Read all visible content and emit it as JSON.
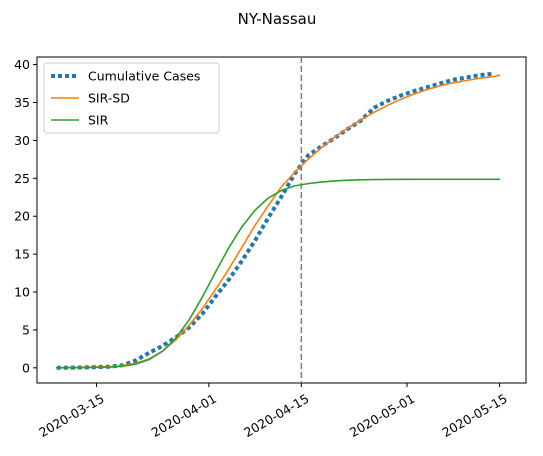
{
  "chart_data": {
    "type": "line",
    "title": "NY-Nassau",
    "xlabel": "",
    "ylabel": "",
    "x_start": "2020-03-09",
    "x_range": [
      "2020-03-06",
      "2020-05-19"
    ],
    "ylim": [
      -2,
      41
    ],
    "x_ticks": [
      "2020-03-15",
      "2020-04-01",
      "2020-04-15",
      "2020-05-01",
      "2020-05-15"
    ],
    "y_ticks": [
      0,
      5,
      10,
      15,
      20,
      25,
      30,
      35,
      40
    ],
    "vline": "2020-04-15",
    "legend": {
      "position": "upper left",
      "entries": [
        "Cumulative Cases",
        "SIR-SD",
        "SIR"
      ]
    },
    "grid": false,
    "series": [
      {
        "name": "Cumulative Cases",
        "color": "#1f77b4",
        "style": "dotted",
        "x": [
          "2020-03-09",
          "2020-03-13",
          "2020-03-17",
          "2020-03-19",
          "2020-03-21",
          "2020-03-23",
          "2020-03-25",
          "2020-03-27",
          "2020-03-29",
          "2020-03-31",
          "2020-04-02",
          "2020-04-04",
          "2020-04-06",
          "2020-04-08",
          "2020-04-10",
          "2020-04-12",
          "2020-04-14",
          "2020-04-16",
          "2020-04-18",
          "2020-04-20",
          "2020-04-22",
          "2020-04-24",
          "2020-04-26",
          "2020-04-28",
          "2020-04-30",
          "2020-05-02",
          "2020-05-04",
          "2020-05-06",
          "2020-05-08",
          "2020-05-10",
          "2020-05-12",
          "2020-05-14"
        ],
        "y": [
          0.0,
          0.05,
          0.15,
          0.35,
          1.0,
          2.0,
          2.9,
          4.0,
          5.3,
          7.1,
          9.4,
          11.6,
          14.1,
          16.8,
          19.8,
          22.6,
          25.6,
          28.0,
          29.2,
          30.3,
          31.5,
          32.6,
          34.3,
          35.2,
          35.9,
          36.5,
          37.0,
          37.5,
          38.0,
          38.3,
          38.6,
          38.8
        ]
      },
      {
        "name": "SIR-SD",
        "color": "#ff7f0e",
        "style": "solid",
        "x": [
          "2020-03-09",
          "2020-03-13",
          "2020-03-17",
          "2020-03-19",
          "2020-03-21",
          "2020-03-23",
          "2020-03-25",
          "2020-03-27",
          "2020-03-29",
          "2020-03-31",
          "2020-04-02",
          "2020-04-04",
          "2020-04-06",
          "2020-04-08",
          "2020-04-10",
          "2020-04-12",
          "2020-04-14",
          "2020-04-16",
          "2020-04-18",
          "2020-04-20",
          "2020-04-22",
          "2020-04-24",
          "2020-04-26",
          "2020-04-28",
          "2020-04-30",
          "2020-05-02",
          "2020-05-04",
          "2020-05-06",
          "2020-05-08",
          "2020-05-10",
          "2020-05-12",
          "2020-05-14",
          "2020-05-15"
        ],
        "y": [
          0.0,
          0.05,
          0.15,
          0.3,
          0.6,
          1.2,
          2.2,
          3.7,
          5.6,
          7.8,
          10.3,
          13.0,
          15.9,
          18.8,
          21.4,
          23.9,
          25.8,
          27.5,
          29.0,
          30.4,
          31.6,
          32.7,
          33.7,
          34.6,
          35.4,
          36.1,
          36.7,
          37.2,
          37.6,
          37.9,
          38.2,
          38.4,
          38.6
        ]
      },
      {
        "name": "SIR",
        "color": "#2ca02c",
        "style": "solid",
        "x": [
          "2020-03-09",
          "2020-03-13",
          "2020-03-17",
          "2020-03-19",
          "2020-03-21",
          "2020-03-23",
          "2020-03-25",
          "2020-03-27",
          "2020-03-29",
          "2020-03-31",
          "2020-04-02",
          "2020-04-04",
          "2020-04-06",
          "2020-04-08",
          "2020-04-10",
          "2020-04-12",
          "2020-04-14",
          "2020-04-16",
          "2020-04-18",
          "2020-04-20",
          "2020-04-22",
          "2020-04-24",
          "2020-04-26",
          "2020-04-28",
          "2020-05-02",
          "2020-05-08",
          "2020-05-15"
        ],
        "y": [
          0.0,
          0.03,
          0.1,
          0.22,
          0.5,
          1.1,
          2.2,
          3.9,
          6.3,
          9.3,
          12.6,
          15.8,
          18.6,
          20.8,
          22.4,
          23.4,
          24.0,
          24.3,
          24.5,
          24.65,
          24.75,
          24.8,
          24.83,
          24.85,
          24.86,
          24.87,
          24.87
        ]
      }
    ]
  }
}
